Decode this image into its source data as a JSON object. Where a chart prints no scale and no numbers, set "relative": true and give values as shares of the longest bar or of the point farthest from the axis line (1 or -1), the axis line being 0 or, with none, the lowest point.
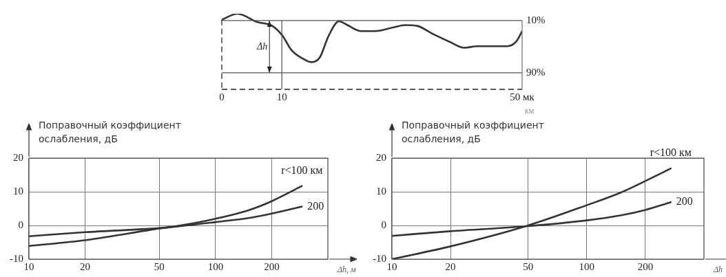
{
  "chart_data": [
    {
      "type": "line",
      "relative": true,
      "x": [
        0,
        2.6,
        5.9,
        8.4,
        10.1,
        11.6,
        13.2,
        14.9,
        16.3,
        17.8,
        19.5,
        20.9,
        23.2,
        25.5,
        28.6,
        30.5,
        32.5,
        35.2,
        37.9,
        40.4,
        42.5,
        44.8,
        47.5,
        49,
        50
      ],
      "values": [
        0.92,
        1,
        0.89,
        0.84,
        0.71,
        0.52,
        0.42,
        0.36,
        0.42,
        0.71,
        0.9,
        0.85,
        0.77,
        0.77,
        0.82,
        0.85,
        0.84,
        0.73,
        0.63,
        0.55,
        0.57,
        0.57,
        0.57,
        0.63,
        0.77
      ],
      "color": "#333333",
      "xlim": [
        0,
        50
      ],
      "xticks": [
        0,
        10,
        {
          "value": 50,
          "label": "50 мк"
        }
      ],
      "xlabel": "км",
      "grid": false,
      "marker": "none",
      "ref_lines": [
        {
          "axis": "y",
          "value": 0.91,
          "color": "#555555"
        },
        {
          "axis": "y",
          "value": 0.22,
          "color": "#555555"
        },
        {
          "axis": "x",
          "value": 10,
          "color": "#555555"
        }
      ],
      "annotations": [
        "Δh",
        "10%",
        "90%"
      ]
    },
    {
      "type": "line",
      "log": "x",
      "x": [
        10,
        20,
        50,
        65,
        100,
        150,
        200,
        290
      ],
      "xlim": [
        10,
        400
      ],
      "xticks": [
        10,
        20,
        50,
        100,
        200
      ],
      "ylim": [
        -10,
        20
      ],
      "yticks": [
        -10,
        0,
        10,
        20
      ],
      "ylabel": "Поправочный коэффициент ослабления, дБ",
      "xlabel": "Δh, м",
      "grid": true,
      "marker": "none",
      "legend": false,
      "series": [
        {
          "name": "r<100 км",
          "color": "#333333",
          "values": [
            -6.1,
            -4.4,
            -0.9,
            0,
            2,
            4.5,
            7.2,
            11.7
          ]
        },
        {
          "name": "200",
          "color": "#333333",
          "values": [
            -3.2,
            -2,
            -0.8,
            -0.2,
            1,
            2.2,
            3.5,
            5.6
          ]
        }
      ]
    },
    {
      "type": "line",
      "log": "x",
      "x": [
        10,
        20,
        50,
        100,
        150,
        200,
        270
      ],
      "xlim": [
        10,
        400
      ],
      "xticks": [
        10,
        20,
        50,
        100,
        200
      ],
      "ylim": [
        -10,
        20
      ],
      "yticks": [
        -10,
        0,
        10,
        20
      ],
      "ylabel": "Поправочный коэффициент ослабления, дБ",
      "xlabel": "Δh",
      "grid": true,
      "marker": "none",
      "legend": false,
      "series": [
        {
          "name": "r<100 км",
          "color": "#333333",
          "values": [
            -10,
            -6.2,
            0,
            6,
            9.8,
            13.2,
            16.9
          ]
        },
        {
          "name": "200",
          "color": "#333333",
          "values": [
            -3.1,
            -1.7,
            -0.2,
            1.5,
            3,
            4.6,
            6.9
          ]
        }
      ]
    }
  ]
}
